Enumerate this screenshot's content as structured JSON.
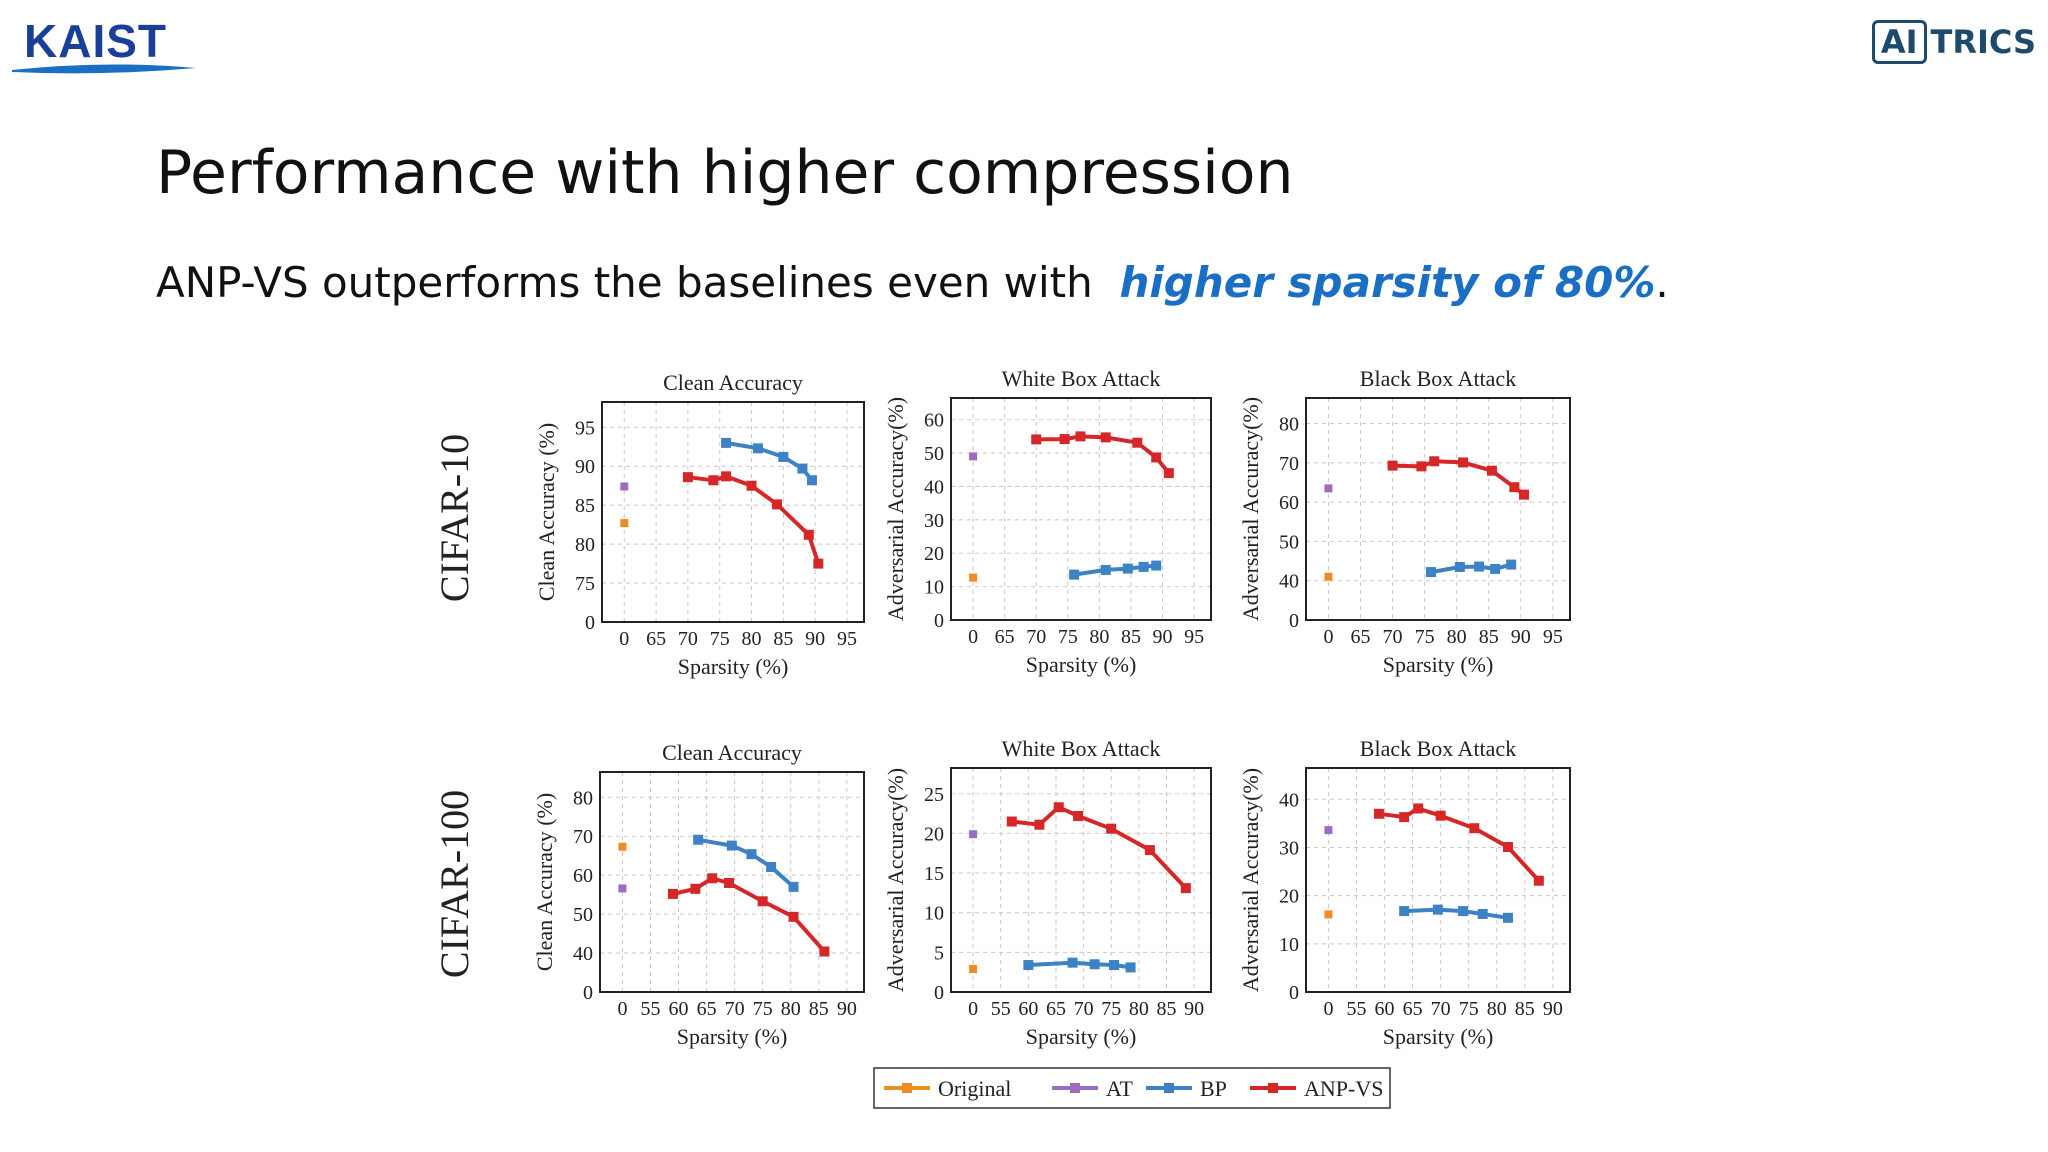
{
  "logos": {
    "left": "KAIST",
    "right_boxed": "AI",
    "right_rest": "TRICS"
  },
  "slide": {
    "title": "Performance with higher compression",
    "subtitle_prefix": "ANP-VS outperforms the baselines even with",
    "subtitle_highlight": "higher sparsity of 80%",
    "subtitle_suffix": "."
  },
  "rows": [
    "CIFAR-10",
    "CIFAR-100"
  ],
  "colors": {
    "Original": "#f08a24",
    "AT": "#9b6cc2",
    "BP": "#3d82c4",
    "ANP-VS": "#d62728"
  },
  "legend": [
    "Original",
    "AT",
    "BP",
    "ANP-VS"
  ],
  "chart_data": [
    {
      "type": "line",
      "row": "CIFAR-10",
      "title": "Clean Accuracy",
      "xlabel": "Sparsity (%)",
      "ylabel": "Clean Accuracy (%)",
      "xticks": [
        "0",
        "65",
        "70",
        "75",
        "80",
        "85",
        "90",
        "95"
      ],
      "yticks": [
        0,
        75,
        80,
        85,
        90,
        95
      ],
      "ylim": [
        0,
        95
      ],
      "series": [
        {
          "name": "Original",
          "points": [
            [
              0,
              82.7
            ]
          ]
        },
        {
          "name": "AT",
          "points": [
            [
              0,
              87.4
            ]
          ]
        },
        {
          "name": "BP",
          "points": [
            [
              76,
              93
            ],
            [
              81,
              92.3
            ],
            [
              85,
              91.2
            ],
            [
              88,
              89.7
            ],
            [
              89.5,
              88.2
            ]
          ]
        },
        {
          "name": "ANP-VS",
          "points": [
            [
              70,
              88.6
            ],
            [
              74,
              88.2
            ],
            [
              76,
              88.7
            ],
            [
              80,
              87.5
            ],
            [
              84,
              85.1
            ],
            [
              89,
              81.2
            ],
            [
              90.5,
              77.5
            ]
          ]
        }
      ]
    },
    {
      "type": "line",
      "row": "CIFAR-10",
      "title": "White Box Attack",
      "xlabel": "Sparsity (%)",
      "ylabel": "Adversarial Accuracy(%)",
      "xticks": [
        "0",
        "65",
        "70",
        "75",
        "80",
        "85",
        "90",
        "95"
      ],
      "yticks": [
        0,
        10,
        20,
        30,
        40,
        50,
        60
      ],
      "ylim": [
        0,
        60
      ],
      "series": [
        {
          "name": "Original",
          "points": [
            [
              0,
              12.7
            ]
          ]
        },
        {
          "name": "AT",
          "points": [
            [
              0,
              49
            ]
          ]
        },
        {
          "name": "BP",
          "points": [
            [
              76,
              13.6
            ],
            [
              81,
              15
            ],
            [
              84.5,
              15.4
            ],
            [
              87,
              15.9
            ],
            [
              89,
              16.3
            ]
          ]
        },
        {
          "name": "ANP-VS",
          "points": [
            [
              70,
              54.1
            ],
            [
              74.5,
              54.2
            ],
            [
              77,
              55
            ],
            [
              81,
              54.7
            ],
            [
              86,
              53.1
            ],
            [
              89,
              48.7
            ],
            [
              91,
              44
            ]
          ]
        }
      ]
    },
    {
      "type": "line",
      "row": "CIFAR-10",
      "title": "Black Box Attack",
      "xlabel": "Sparsity (%)",
      "ylabel": "Adversarial Accuracy(%)",
      "xticks": [
        "0",
        "65",
        "70",
        "75",
        "80",
        "85",
        "90",
        "95"
      ],
      "yticks": [
        0,
        40,
        50,
        60,
        70,
        80
      ],
      "ylim": [
        0,
        80
      ],
      "series": [
        {
          "name": "Original",
          "points": [
            [
              0,
              41
            ]
          ]
        },
        {
          "name": "AT",
          "points": [
            [
              0,
              63.5
            ]
          ]
        },
        {
          "name": "BP",
          "points": [
            [
              76,
              42.2
            ],
            [
              80.5,
              43.5
            ],
            [
              83.5,
              43.6
            ],
            [
              86,
              43
            ],
            [
              88.5,
              44.1
            ]
          ]
        },
        {
          "name": "ANP-VS",
          "points": [
            [
              70,
              69.3
            ],
            [
              74.5,
              69.1
            ],
            [
              76.5,
              70.4
            ],
            [
              81,
              70.1
            ],
            [
              85.5,
              68
            ],
            [
              89,
              63.8
            ],
            [
              90.5,
              61.9
            ]
          ]
        }
      ]
    },
    {
      "type": "line",
      "row": "CIFAR-100",
      "title": "Clean Accuracy",
      "xlabel": "Sparsity (%)",
      "ylabel": "Clean Accuracy (%)",
      "xticks": [
        "0",
        "55",
        "60",
        "65",
        "70",
        "75",
        "80",
        "85",
        "90"
      ],
      "yticks": [
        0,
        40,
        50,
        60,
        70,
        80
      ],
      "ylim": [
        0,
        80
      ],
      "series": [
        {
          "name": "Original",
          "points": [
            [
              0,
              67.3
            ]
          ]
        },
        {
          "name": "AT",
          "points": [
            [
              0,
              56.6
            ]
          ]
        },
        {
          "name": "BP",
          "points": [
            [
              63.5,
              69.1
            ],
            [
              69.5,
              67.6
            ],
            [
              73,
              65.4
            ],
            [
              76.5,
              62.1
            ],
            [
              80.5,
              57
            ]
          ]
        },
        {
          "name": "ANP-VS",
          "points": [
            [
              59,
              55.2
            ],
            [
              63,
              56.5
            ],
            [
              66,
              59.2
            ],
            [
              69,
              58
            ],
            [
              75,
              53.3
            ],
            [
              80.5,
              49.3
            ],
            [
              86,
              40.4
            ]
          ]
        }
      ]
    },
    {
      "type": "line",
      "row": "CIFAR-100",
      "title": "White Box Attack",
      "xlabel": "Sparsity (%)",
      "ylabel": "Adversarial Accuracy(%)",
      "xticks": [
        "0",
        "55",
        "60",
        "65",
        "70",
        "75",
        "80",
        "85",
        "90"
      ],
      "yticks": [
        0,
        5,
        10,
        15,
        20,
        25
      ],
      "ylim": [
        0,
        25
      ],
      "series": [
        {
          "name": "Original",
          "points": [
            [
              0,
              2.9
            ]
          ]
        },
        {
          "name": "AT",
          "points": [
            [
              0,
              19.9
            ]
          ]
        },
        {
          "name": "BP",
          "points": [
            [
              60,
              3.4
            ],
            [
              68,
              3.7
            ],
            [
              72,
              3.5
            ],
            [
              75.5,
              3.4
            ],
            [
              78.5,
              3.1
            ]
          ]
        },
        {
          "name": "ANP-VS",
          "points": [
            [
              57,
              21.5
            ],
            [
              62,
              21.1
            ],
            [
              65.5,
              23.3
            ],
            [
              69,
              22.2
            ],
            [
              75,
              20.6
            ],
            [
              82,
              17.9
            ],
            [
              88.5,
              13.1
            ]
          ]
        }
      ]
    },
    {
      "type": "line",
      "row": "CIFAR-100",
      "title": "Black Box Attack",
      "xlabel": "Sparsity (%)",
      "ylabel": "Adversarial Accuracy(%)",
      "xticks": [
        "0",
        "55",
        "60",
        "65",
        "70",
        "75",
        "80",
        "85",
        "90"
      ],
      "yticks": [
        0,
        10,
        20,
        30,
        40
      ],
      "ylim": [
        0,
        40
      ],
      "series": [
        {
          "name": "Original",
          "points": [
            [
              0,
              16.1
            ]
          ]
        },
        {
          "name": "AT",
          "points": [
            [
              0,
              33.6
            ]
          ]
        },
        {
          "name": "BP",
          "points": [
            [
              63.5,
              16.8
            ],
            [
              69.5,
              17.1
            ],
            [
              74,
              16.8
            ],
            [
              77.5,
              16.2
            ],
            [
              82,
              15.4
            ]
          ]
        },
        {
          "name": "ANP-VS",
          "points": [
            [
              59,
              37
            ],
            [
              63.5,
              36.3
            ],
            [
              66,
              38.1
            ],
            [
              70,
              36.6
            ],
            [
              76,
              34
            ],
            [
              82,
              30.1
            ],
            [
              87.5,
              23.1
            ]
          ]
        }
      ]
    }
  ]
}
